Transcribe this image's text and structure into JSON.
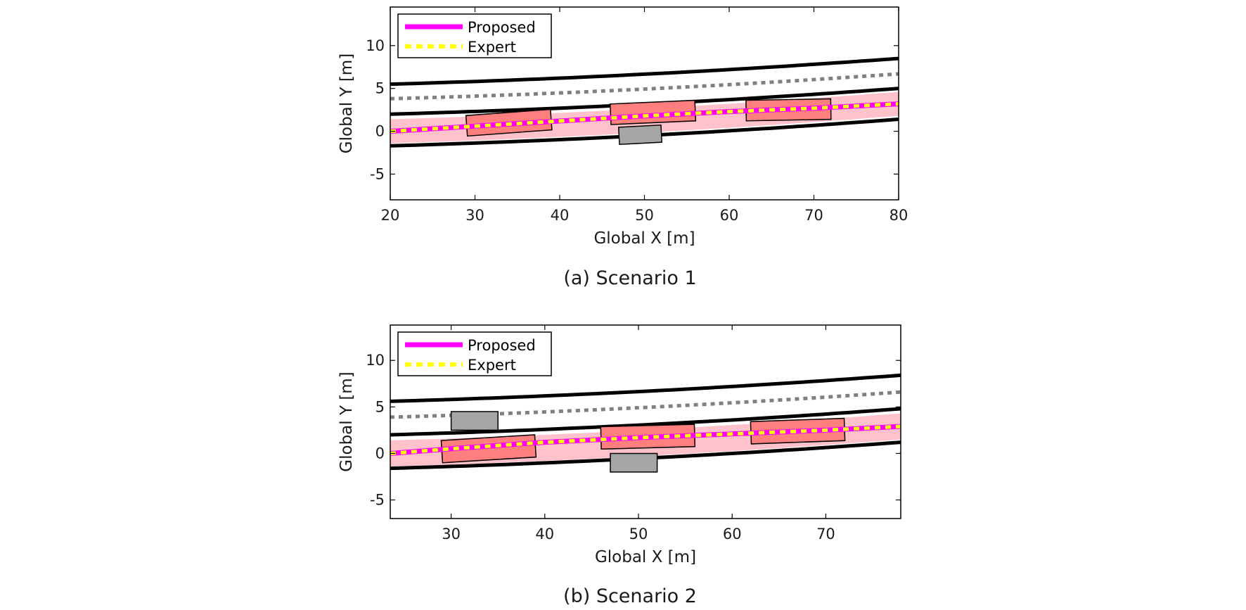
{
  "captions": [
    "(a)  Scenario 1",
    "(b)  Scenario 2"
  ],
  "colors": {
    "proposed": "#ff00ff",
    "expert": "#ffff00",
    "road_boundary": "#000000",
    "lane_center": "#808080",
    "uncertainty_band": "#ffb6c1",
    "predicted_vehicle": "#ff7f7f",
    "obstacle_vehicle": "#a6a6a6"
  },
  "chart_data": [
    {
      "type": "line",
      "title": "",
      "xlabel": "Global X [m]",
      "ylabel": "Global Y [m]",
      "xlim": [
        20,
        80
      ],
      "ylim": [
        -8,
        14.5
      ],
      "xticks": [
        20,
        30,
        40,
        50,
        60,
        70,
        80
      ],
      "yticks": [
        -5,
        0,
        5,
        10
      ],
      "grid": false,
      "legend": {
        "placement": "top-left",
        "entries": [
          "Proposed",
          "Expert"
        ]
      },
      "road": {
        "upper_boundary": {
          "x": [
            20,
            80
          ],
          "y_start": 5.5,
          "y_end": 8.5
        },
        "lane_divider": {
          "x": [
            20,
            80
          ],
          "y_start": 3.8,
          "y_end": 6.7
        },
        "middle_boundary": {
          "x": [
            20,
            80
          ],
          "y_start": 2.0,
          "y_end": 5.0
        },
        "lower_boundary": {
          "x": [
            20,
            80
          ],
          "y_start": -1.7,
          "y_end": 1.4
        }
      },
      "series": [
        {
          "name": "Proposed",
          "x": [
            20,
            30,
            40,
            50,
            60,
            70,
            80
          ],
          "y": [
            0.0,
            0.6,
            1.2,
            1.8,
            2.3,
            2.7,
            3.2
          ]
        },
        {
          "name": "Expert",
          "x": [
            20,
            30,
            40,
            50,
            60,
            70,
            80
          ],
          "y": [
            0.0,
            0.6,
            1.2,
            1.8,
            2.3,
            2.7,
            3.2
          ]
        }
      ],
      "uncertainty_band": {
        "x": [
          20,
          80
        ],
        "y_start": 0.0,
        "y_end": 3.2,
        "half_width": 1.4
      },
      "predicted_vehicles": [
        {
          "cx": 34,
          "cy": 1.0,
          "length": 10,
          "width": 2.4,
          "angle_deg": 4.2
        },
        {
          "cx": 51,
          "cy": 2.2,
          "length": 10,
          "width": 2.4,
          "angle_deg": 2.5
        },
        {
          "cx": 67,
          "cy": 2.5,
          "length": 10,
          "width": 2.4,
          "angle_deg": 1.0
        }
      ],
      "obstacles": [
        {
          "cx": 49.5,
          "cy": -0.4,
          "length": 5,
          "width": 2.0,
          "angle_deg": 3.0
        }
      ]
    },
    {
      "type": "line",
      "title": "",
      "xlabel": "Global X [m]",
      "ylabel": "Global Y [m]",
      "xlim": [
        23.5,
        78
      ],
      "ylim": [
        -7,
        13.8
      ],
      "xticks": [
        30,
        40,
        50,
        60,
        70
      ],
      "yticks": [
        -5,
        0,
        5,
        10
      ],
      "grid": false,
      "legend": {
        "placement": "top-left",
        "entries": [
          "Proposed",
          "Expert"
        ]
      },
      "road": {
        "upper_boundary": {
          "x": [
            23.5,
            78
          ],
          "y_start": 5.6,
          "y_end": 8.4
        },
        "lane_divider": {
          "x": [
            23.5,
            78
          ],
          "y_start": 3.9,
          "y_end": 6.6
        },
        "middle_boundary": {
          "x": [
            23.5,
            78
          ],
          "y_start": 2.0,
          "y_end": 4.8
        },
        "lower_boundary": {
          "x": [
            23.5,
            78
          ],
          "y_start": -1.6,
          "y_end": 1.2
        }
      },
      "series": [
        {
          "name": "Proposed",
          "x": [
            23.5,
            30,
            40,
            50,
            60,
            70,
            78
          ],
          "y": [
            0.0,
            0.5,
            1.2,
            1.7,
            2.1,
            2.5,
            2.9
          ]
        },
        {
          "name": "Expert",
          "x": [
            23.5,
            30,
            40,
            50,
            60,
            70,
            78
          ],
          "y": [
            0.0,
            0.5,
            1.2,
            1.7,
            2.1,
            2.5,
            2.9
          ]
        }
      ],
      "uncertainty_band": {
        "x": [
          23.5,
          78
        ],
        "y_start": 0.0,
        "y_end": 2.9,
        "half_width": 1.4
      },
      "predicted_vehicles": [
        {
          "cx": 34,
          "cy": 0.5,
          "length": 10,
          "width": 2.4,
          "angle_deg": 3.5
        },
        {
          "cx": 51,
          "cy": 1.8,
          "length": 10,
          "width": 2.4,
          "angle_deg": 1.5
        },
        {
          "cx": 67,
          "cy": 2.4,
          "length": 10,
          "width": 2.4,
          "angle_deg": 2.0
        }
      ],
      "obstacles": [
        {
          "cx": 32.5,
          "cy": 3.5,
          "length": 5,
          "width": 2.0,
          "angle_deg": 0
        },
        {
          "cx": 49.5,
          "cy": -1.0,
          "length": 5,
          "width": 2.0,
          "angle_deg": 0
        }
      ]
    }
  ]
}
